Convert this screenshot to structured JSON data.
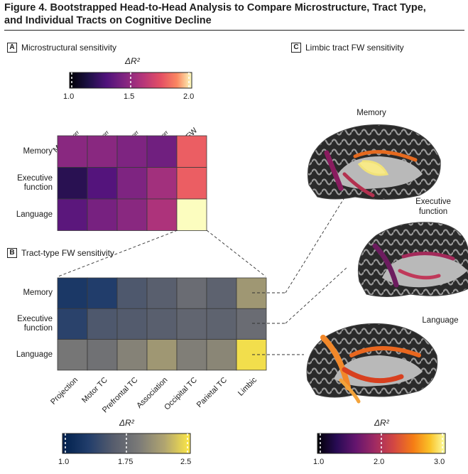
{
  "figure": {
    "title_line1": "Figure 4. Bootstrapped Head-to-Head Analysis to Compare Microstructure, Tract Type,",
    "title_line2": "and Individual Tracts on Cognitive Decline"
  },
  "panelA": {
    "letter": "A",
    "title": "Microstructural sensitivity",
    "colorbar": {
      "title": "ΔR²",
      "ticks": [
        "1.0",
        "1.5",
        "2.0"
      ],
      "min": 1.0,
      "max": 2.0,
      "palette": "magma"
    },
    "columns": [
      "MDFWcorr",
      "RDFWcorr",
      "AxDFWcorr",
      "FAFWcorr",
      "FW"
    ],
    "column_parts": [
      {
        "main": "MD",
        "sub": "FWcorr"
      },
      {
        "main": "RD",
        "sub": "FWcorr"
      },
      {
        "main": "AxD",
        "sub": "FWcorr"
      },
      {
        "main": "FA",
        "sub": "FWcorr"
      },
      {
        "main": "FW",
        "sub": ""
      }
    ],
    "rows": [
      "Memory",
      "Executive function",
      "Language"
    ],
    "row_lines": [
      [
        "Memory"
      ],
      [
        "Executive",
        "function"
      ],
      [
        "Language"
      ]
    ]
  },
  "panelB": {
    "letter": "B",
    "title": "Tract-type FW sensitivity",
    "columns": [
      "Projection",
      "Motor TC",
      "Prefrontal TC",
      "Association",
      "Occipital TC",
      "Parietal TC",
      "Limbic"
    ],
    "rows": [
      "Memory",
      "Executive function",
      "Language"
    ],
    "row_lines": [
      [
        "Memory"
      ],
      [
        "Executive",
        "function"
      ],
      [
        "Language"
      ]
    ],
    "colorbar": {
      "title": "ΔR²",
      "ticks": [
        "1.0",
        "1.75",
        "2.5"
      ],
      "min": 1.0,
      "max": 2.5,
      "palette": "cividis"
    }
  },
  "panelC": {
    "letter": "C",
    "title": "Limbic tract FW sensitivity",
    "brains": [
      "Memory",
      "Executive function",
      "Language"
    ],
    "brain_lines": [
      [
        "Memory"
      ],
      [
        "Executive",
        "function"
      ],
      [
        "Language"
      ]
    ],
    "colorbar": {
      "title": "ΔR²",
      "ticks": [
        "1.0",
        "2.0",
        "3.0"
      ],
      "min": 1.0,
      "max": 3.0,
      "palette": "inferno"
    }
  },
  "chart_data": [
    {
      "type": "heatmap",
      "title": "Microstructural sensitivity",
      "x": [
        "MDFWcorr",
        "RDFWcorr",
        "AxDFWcorr",
        "FAFWcorr",
        "FW"
      ],
      "y": [
        "Memory",
        "Executive function",
        "Language"
      ],
      "values": [
        [
          1.45,
          1.45,
          1.42,
          1.38,
          1.75
        ],
        [
          1.18,
          1.3,
          1.42,
          1.52,
          1.75
        ],
        [
          1.32,
          1.4,
          1.45,
          1.55,
          2.0
        ]
      ],
      "colorbar_range": [
        1.0,
        2.0
      ]
    },
    {
      "type": "heatmap",
      "title": "Tract-type FW sensitivity",
      "x": [
        "Projection",
        "Motor TC",
        "Prefrontal TC",
        "Association",
        "Occipital TC",
        "Parietal TC",
        "Limbic"
      ],
      "y": [
        "Memory",
        "Executive function",
        "Language"
      ],
      "values": [
        [
          1.25,
          1.3,
          1.55,
          1.62,
          1.75,
          1.65,
          2.1
        ],
        [
          1.35,
          1.55,
          1.58,
          1.62,
          1.68,
          1.66,
          1.75
        ],
        [
          1.85,
          1.8,
          1.95,
          2.1,
          1.92,
          1.98,
          2.45
        ]
      ],
      "colorbar_range": [
        1.0,
        2.5
      ]
    }
  ]
}
